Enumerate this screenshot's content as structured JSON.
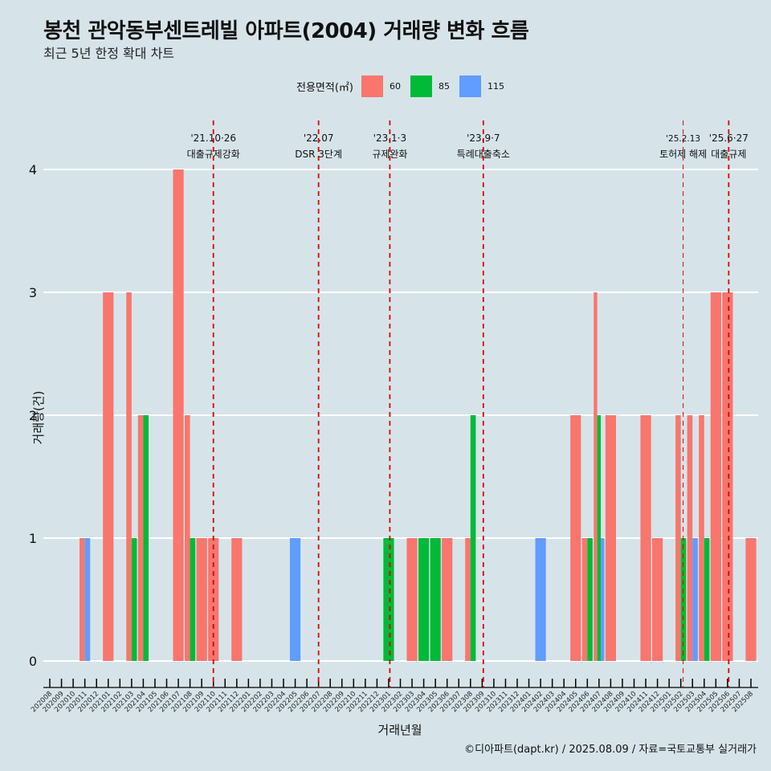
{
  "title": "봉천 관악동부센트레빌 아파트(2004) 거래량 변화 흐름",
  "subtitle": "최근 5년 한정 확대 차트",
  "caption": "©디아파트(dapt.kr) / 2025.08.09 / 자료=국토교통부 실거래가",
  "chart_data": {
    "type": "bar",
    "xlabel": "거래년월",
    "ylabel": "거래량(건)",
    "ylim": [
      0,
      4
    ],
    "yticks": [
      0,
      1,
      2,
      3,
      4
    ],
    "grid": true,
    "legend": {
      "title": "전용면적(㎡)",
      "position": "top",
      "items": [
        {
          "name": "60",
          "color": "#F8766D"
        },
        {
          "name": "85",
          "color": "#00BA38"
        },
        {
          "name": "115",
          "color": "#619CFF"
        }
      ]
    },
    "categories": [
      "202008",
      "202009",
      "202010",
      "202011",
      "202012",
      "202101",
      "202102",
      "202103",
      "202104",
      "202105",
      "202106",
      "202107",
      "202108",
      "202109",
      "202110",
      "202111",
      "202112",
      "202201",
      "202202",
      "202203",
      "202204",
      "202205",
      "202206",
      "202207",
      "202208",
      "202209",
      "202210",
      "202211",
      "202212",
      "202301",
      "202302",
      "202303",
      "202304",
      "202305",
      "202306",
      "202307",
      "202308",
      "202309",
      "202310",
      "202311",
      "202312",
      "202401",
      "202402",
      "202403",
      "202404",
      "202405",
      "202406",
      "202407",
      "202408",
      "202409",
      "202410",
      "202411",
      "202412",
      "202501",
      "202502",
      "202503",
      "202504",
      "202505",
      "202506",
      "202507",
      "202508"
    ],
    "bars": [
      {
        "month": "202011",
        "series": "60",
        "value": 1
      },
      {
        "month": "202011",
        "series": "115",
        "value": 1
      },
      {
        "month": "202101",
        "series": "60",
        "value": 3
      },
      {
        "month": "202103",
        "series": "60",
        "value": 3
      },
      {
        "month": "202103",
        "series": "85",
        "value": 1
      },
      {
        "month": "202104",
        "series": "60",
        "value": 2
      },
      {
        "month": "202104",
        "series": "85",
        "value": 2
      },
      {
        "month": "202107",
        "series": "60",
        "value": 4
      },
      {
        "month": "202108",
        "series": "60",
        "value": 2
      },
      {
        "month": "202108",
        "series": "85",
        "value": 1
      },
      {
        "month": "202109",
        "series": "60",
        "value": 1
      },
      {
        "month": "202110",
        "series": "60",
        "value": 1
      },
      {
        "month": "202112",
        "series": "60",
        "value": 1
      },
      {
        "month": "202205",
        "series": "115",
        "value": 1
      },
      {
        "month": "202301",
        "series": "85",
        "value": 1
      },
      {
        "month": "202303",
        "series": "60",
        "value": 1
      },
      {
        "month": "202304",
        "series": "85",
        "value": 1
      },
      {
        "month": "202305",
        "series": "85",
        "value": 1
      },
      {
        "month": "202306",
        "series": "60",
        "value": 1
      },
      {
        "month": "202308",
        "series": "60",
        "value": 1
      },
      {
        "month": "202308",
        "series": "85",
        "value": 2
      },
      {
        "month": "202402",
        "series": "115",
        "value": 1
      },
      {
        "month": "202405",
        "series": "60",
        "value": 2
      },
      {
        "month": "202406",
        "series": "60",
        "value": 1
      },
      {
        "month": "202406",
        "series": "85",
        "value": 1
      },
      {
        "month": "202407",
        "series": "60",
        "value": 3
      },
      {
        "month": "202407",
        "series": "85",
        "value": 2
      },
      {
        "month": "202407",
        "series": "115",
        "value": 1
      },
      {
        "month": "202408",
        "series": "60",
        "value": 2
      },
      {
        "month": "202411",
        "series": "60",
        "value": 2
      },
      {
        "month": "202412",
        "series": "60",
        "value": 1
      },
      {
        "month": "202502",
        "series": "60",
        "value": 2
      },
      {
        "month": "202502",
        "series": "85",
        "value": 1
      },
      {
        "month": "202503",
        "series": "60",
        "value": 2
      },
      {
        "month": "202503",
        "series": "115",
        "value": 1
      },
      {
        "month": "202504",
        "series": "60",
        "value": 2
      },
      {
        "month": "202504",
        "series": "85",
        "value": 1
      },
      {
        "month": "202505",
        "series": "60",
        "value": 3
      },
      {
        "month": "202506",
        "series": "60",
        "value": 3
      },
      {
        "month": "202508",
        "series": "60",
        "value": 1
      }
    ],
    "annotations": [
      {
        "x": 14.0,
        "date": "'21.10·26",
        "label": "대출규제강화",
        "line": "thick"
      },
      {
        "x": 23.0,
        "date": "'22.07",
        "label": "DSR 3단계",
        "line": "thick"
      },
      {
        "x": 29.1,
        "date": "'23.1·3",
        "label": "규제완화",
        "line": "thick"
      },
      {
        "x": 37.1,
        "date": "'23.9·7",
        "label": "특례대출축소",
        "line": "thick"
      },
      {
        "x": 54.2,
        "date": "'25.2.13",
        "label": "토허제 해제",
        "line": "thin"
      },
      {
        "x": 58.1,
        "date": "'25.6·27",
        "label": "대출규제",
        "line": "thick"
      }
    ]
  }
}
